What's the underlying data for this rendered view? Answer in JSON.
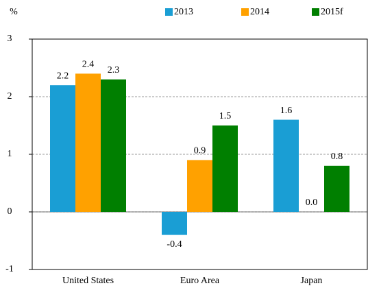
{
  "chart_data": {
    "type": "bar",
    "y_label": "%",
    "categories": [
      "United States",
      "Euro Area",
      "Japan"
    ],
    "series": [
      {
        "name": "2013",
        "color": "#1a9ed4",
        "values": [
          2.2,
          -0.4,
          1.6
        ],
        "value_labels": [
          "2.2",
          "-0.4",
          "1.6"
        ]
      },
      {
        "name": "2014",
        "color": "#ffa100",
        "values": [
          2.4,
          0.9,
          0.0
        ],
        "value_labels": [
          "2.4",
          "0.9",
          "0.0"
        ]
      },
      {
        "name": "2015f",
        "color": "#007f00",
        "values": [
          2.3,
          1.5,
          0.8
        ],
        "value_labels": [
          "2.3",
          "1.5",
          "0.8"
        ]
      }
    ],
    "ylim": [
      -1,
      3
    ],
    "yticks": [
      -1,
      0,
      1,
      2,
      3
    ],
    "grid": true
  }
}
